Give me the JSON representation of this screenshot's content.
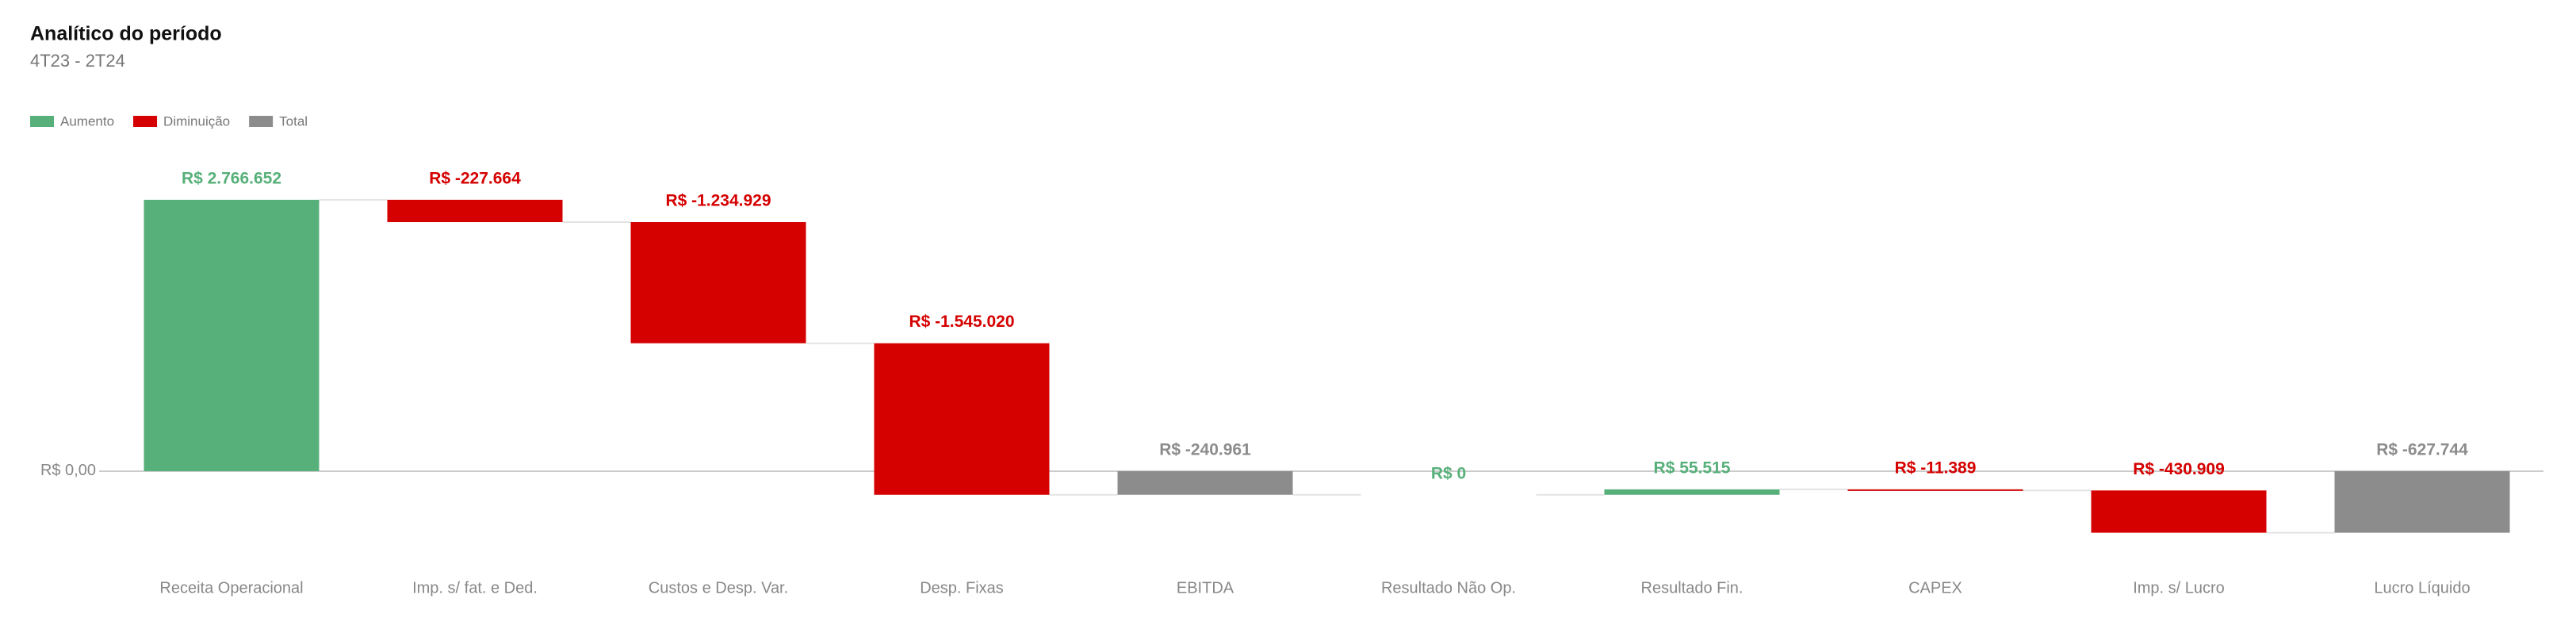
{
  "chart_data": {
    "type": "waterfall",
    "title": "Analítico do período",
    "subtitle": "4T23 - 2T24",
    "legend": [
      {
        "name": "Aumento",
        "color": "#57b07a"
      },
      {
        "name": "Diminuição",
        "color": "#d50000"
      },
      {
        "name": "Total",
        "color": "#8c8c8c"
      }
    ],
    "categories": [
      "Receita Operacional",
      "Imp. s/ fat. e Ded.",
      "Custos e Desp. Var.",
      "Desp. Fixas",
      "EBITDA",
      "Resultado Não Op.",
      "Resultado Fin.",
      "CAPEX",
      "Imp. s/ Lucro",
      "Lucro Líquido"
    ],
    "values": [
      2766652,
      -227664,
      -1234929,
      -1545020,
      -240961,
      0,
      55515,
      -11389,
      -430909,
      -627744
    ],
    "value_labels": [
      "R$ 2.766.652",
      "R$ -227.664",
      "R$ -1.234.929",
      "R$ -1.545.020",
      "R$ -240.961",
      "R$ 0",
      "R$ 55.515",
      "R$ -11.389",
      "R$ -430.909",
      "R$ -627.744"
    ],
    "is_total": [
      false,
      false,
      false,
      false,
      true,
      false,
      false,
      false,
      false,
      true
    ],
    "ylim": [
      -700000,
      3000000
    ],
    "yticks": [
      {
        "value": 0,
        "label": "R$ 0,00"
      }
    ]
  }
}
